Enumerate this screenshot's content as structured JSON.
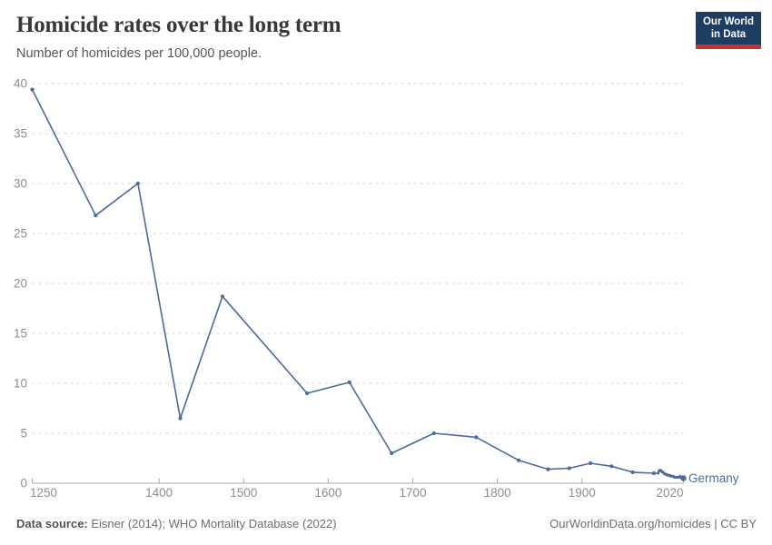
{
  "header": {
    "title": "Homicide rates over the long term",
    "subtitle": "Number of homicides per 100,000 people.",
    "logo": {
      "line1": "Our World",
      "line2": "in Data",
      "bg_color": "#1d3d63",
      "accent_color": "#c5332d"
    }
  },
  "chart_data": {
    "type": "line",
    "title": "Homicide rates over the long term",
    "xlabel": "",
    "ylabel": "",
    "xlim": [
      1250,
      2020
    ],
    "ylim": [
      0,
      40
    ],
    "xticks": [
      1250,
      1400,
      1500,
      1600,
      1700,
      1800,
      1900,
      2020
    ],
    "yticks": [
      0,
      5,
      10,
      15,
      20,
      25,
      30,
      35,
      40
    ],
    "grid": "horizontal-dashed",
    "legend_position": "end-of-line",
    "axis_color": "#a9a9a9",
    "grid_color": "#dadada",
    "tick_label_color": "#8e8e8e",
    "series": [
      {
        "name": "Germany",
        "color": "#4c6a9c",
        "points": [
          [
            1250,
            39.4
          ],
          [
            1325,
            26.8
          ],
          [
            1375,
            30.0
          ],
          [
            1425,
            6.5
          ],
          [
            1475,
            18.7
          ],
          [
            1575,
            9.0
          ],
          [
            1625,
            10.1
          ],
          [
            1675,
            3.0
          ],
          [
            1725,
            5.0
          ],
          [
            1775,
            4.6
          ],
          [
            1825,
            2.3
          ],
          [
            1860,
            1.4
          ],
          [
            1885,
            1.5
          ],
          [
            1910,
            2.0
          ],
          [
            1935,
            1.7
          ],
          [
            1960,
            1.1
          ],
          [
            1985,
            1.0
          ],
          [
            1990,
            1.0
          ],
          [
            1991,
            1.2
          ],
          [
            1992,
            1.3
          ],
          [
            1993,
            1.3
          ],
          [
            1994,
            1.2
          ],
          [
            1995,
            1.1
          ],
          [
            1996,
            1.1
          ],
          [
            1997,
            1.0
          ],
          [
            1998,
            0.9
          ],
          [
            1999,
            0.9
          ],
          [
            2000,
            0.9
          ],
          [
            2001,
            0.8
          ],
          [
            2002,
            0.8
          ],
          [
            2003,
            0.8
          ],
          [
            2004,
            0.8
          ],
          [
            2005,
            0.7
          ],
          [
            2006,
            0.7
          ],
          [
            2007,
            0.7
          ],
          [
            2008,
            0.7
          ],
          [
            2009,
            0.6
          ],
          [
            2010,
            0.6
          ],
          [
            2011,
            0.6
          ],
          [
            2012,
            0.6
          ],
          [
            2013,
            0.6
          ],
          [
            2014,
            0.6
          ],
          [
            2015,
            0.6
          ],
          [
            2016,
            0.7
          ],
          [
            2017,
            0.6
          ],
          [
            2018,
            0.5
          ],
          [
            2019,
            0.5
          ],
          [
            2020,
            0.5
          ]
        ]
      }
    ]
  },
  "footer": {
    "datasource_label": "Data source:",
    "datasource_value": " Eisner (2014); WHO Mortality Database (2022)",
    "link": "OurWorldinData.org/homicides | CC BY"
  }
}
